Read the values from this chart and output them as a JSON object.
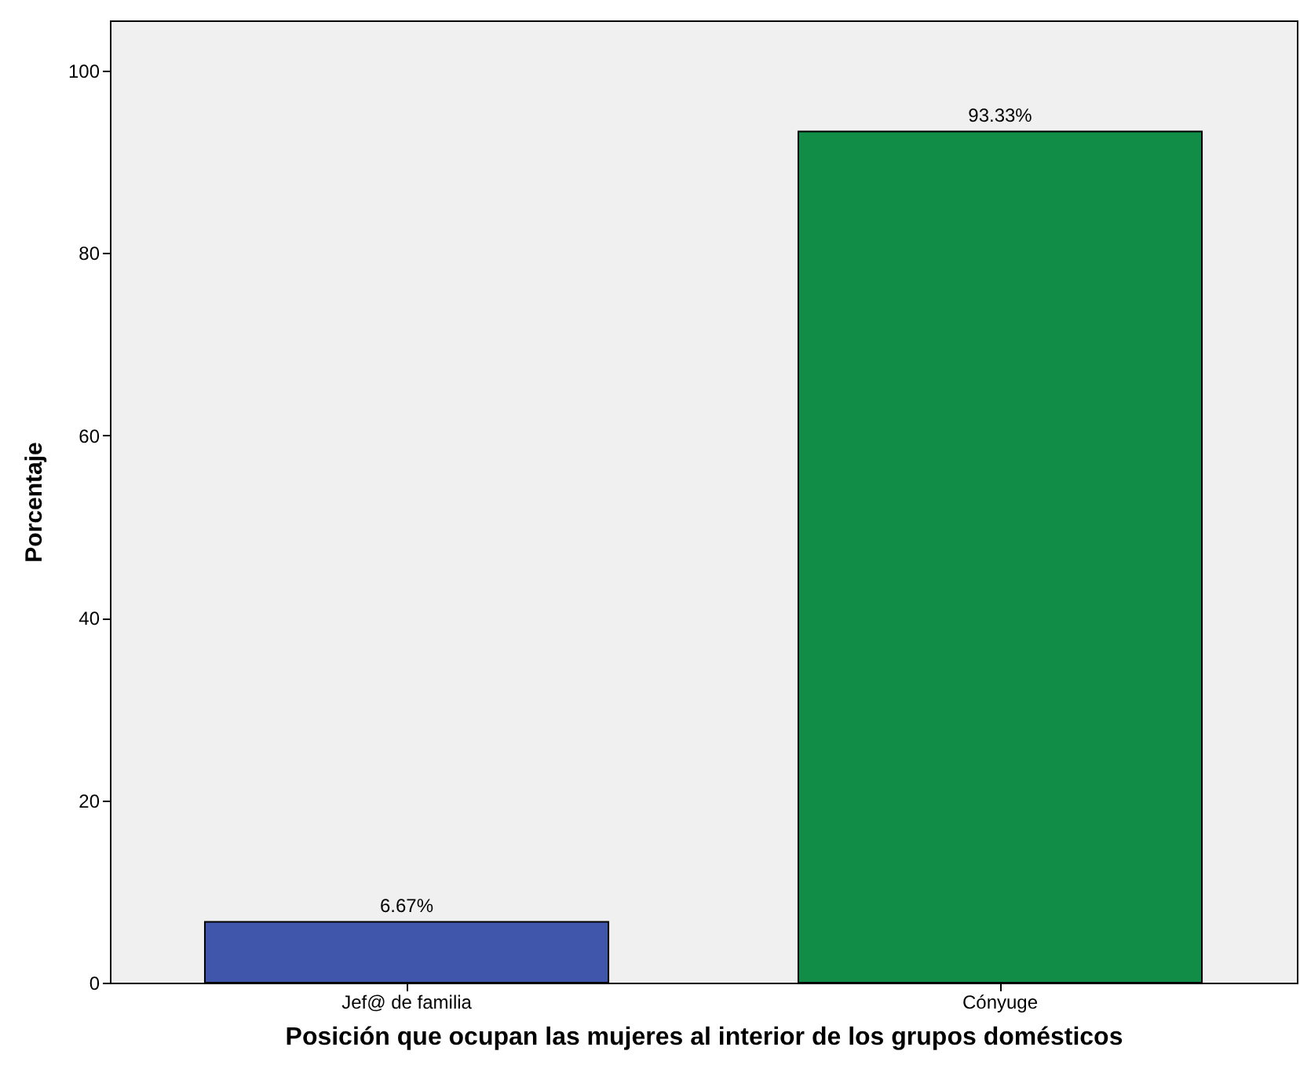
{
  "chart_data": {
    "type": "bar",
    "xlabel": "Posición que ocupan las mujeres al interior de los grupos domésticos",
    "ylabel": "Porcentaje",
    "categories": [
      "Jef@ de familia",
      "Cónyuge"
    ],
    "values": [
      6.67,
      93.33
    ],
    "colors": [
      "#3f56ab",
      "#118d48"
    ],
    "value_labels": [
      "6.67%",
      "93.33%"
    ],
    "ylim": [
      0,
      105.5
    ],
    "yticks": [
      0,
      20,
      40,
      60,
      80,
      100
    ],
    "grid": false
  }
}
